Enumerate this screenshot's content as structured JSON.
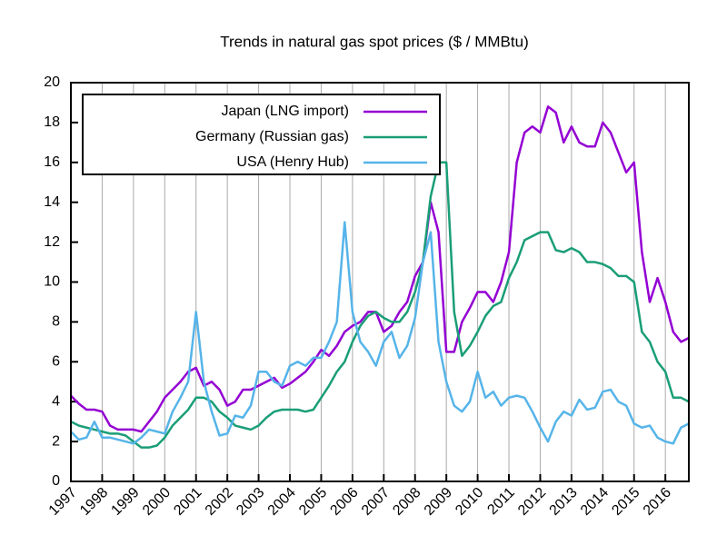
{
  "chart_data": {
    "type": "line",
    "title": "Trends in natural gas spot prices ($ / MMBtu)",
    "x": [
      1997,
      1997.25,
      1997.5,
      1997.75,
      1998,
      1998.25,
      1998.5,
      1998.75,
      1999,
      1999.25,
      1999.5,
      1999.75,
      2000,
      2000.25,
      2000.5,
      2000.75,
      2001,
      2001.25,
      2001.5,
      2001.75,
      2002,
      2002.25,
      2002.5,
      2002.75,
      2003,
      2003.25,
      2003.5,
      2003.75,
      2004,
      2004.25,
      2004.5,
      2004.75,
      2005,
      2005.25,
      2005.5,
      2005.75,
      2006,
      2006.25,
      2006.5,
      2006.75,
      2007,
      2007.25,
      2007.5,
      2007.75,
      2008,
      2008.25,
      2008.5,
      2008.75,
      2009,
      2009.25,
      2009.5,
      2009.75,
      2010,
      2010.25,
      2010.5,
      2010.75,
      2011,
      2011.25,
      2011.5,
      2011.75,
      2012,
      2012.25,
      2012.5,
      2012.75,
      2013,
      2013.25,
      2013.5,
      2013.75,
      2014,
      2014.25,
      2014.5,
      2014.75,
      2015,
      2015.25,
      2015.5,
      2015.75,
      2016,
      2016.25,
      2016.5,
      2016.75
    ],
    "series": [
      {
        "name": "Japan (LNG import)",
        "color": "#9400d3",
        "values": [
          4.3,
          3.9,
          3.6,
          3.6,
          3.5,
          2.8,
          2.6,
          2.6,
          2.6,
          2.5,
          3.0,
          3.5,
          4.2,
          4.6,
          5.0,
          5.5,
          5.7,
          4.8,
          5.0,
          4.6,
          3.8,
          4.0,
          4.6,
          4.6,
          4.8,
          5.0,
          5.2,
          4.7,
          4.9,
          5.2,
          5.5,
          6.0,
          6.6,
          6.3,
          6.8,
          7.5,
          7.8,
          8.0,
          8.5,
          8.5,
          7.5,
          7.8,
          8.5,
          9.0,
          10.3,
          11.0,
          14.0,
          12.5,
          6.5,
          6.5,
          8.0,
          8.7,
          9.5,
          9.5,
          9.0,
          10.0,
          11.5,
          16.0,
          17.5,
          17.8,
          17.5,
          18.8,
          18.5,
          17.0,
          17.8,
          17.0,
          16.8,
          16.8,
          18.0,
          17.5,
          16.5,
          15.5,
          16.0,
          11.5,
          9.0,
          10.2,
          9.0,
          7.5,
          7.0,
          7.2
        ]
      },
      {
        "name": "Germany (Russian gas)",
        "color": "#1a9e77",
        "values": [
          3.0,
          2.8,
          2.7,
          2.6,
          2.5,
          2.4,
          2.4,
          2.3,
          2.0,
          1.7,
          1.7,
          1.8,
          2.2,
          2.8,
          3.2,
          3.6,
          4.2,
          4.2,
          4.0,
          3.5,
          3.2,
          2.8,
          2.7,
          2.6,
          2.8,
          3.2,
          3.5,
          3.6,
          3.6,
          3.6,
          3.5,
          3.6,
          4.2,
          4.8,
          5.5,
          6.0,
          7.0,
          7.8,
          8.3,
          8.5,
          8.2,
          8.0,
          8.0,
          8.5,
          9.5,
          11.0,
          14.3,
          16.0,
          16.0,
          8.5,
          6.3,
          6.8,
          7.5,
          8.3,
          8.8,
          9.0,
          10.2,
          11.0,
          12.1,
          12.3,
          12.5,
          12.5,
          11.6,
          11.5,
          11.7,
          11.5,
          11.0,
          11.0,
          10.9,
          10.7,
          10.3,
          10.3,
          10.0,
          7.5,
          7.0,
          6.0,
          5.5,
          4.2,
          4.2,
          4.0
        ]
      },
      {
        "name": "USA (Henry Hub)",
        "color": "#56b4e9",
        "values": [
          2.5,
          2.1,
          2.2,
          3.0,
          2.2,
          2.2,
          2.1,
          2.0,
          1.9,
          2.2,
          2.6,
          2.5,
          2.4,
          3.5,
          4.2,
          5.0,
          8.5,
          5.0,
          3.5,
          2.3,
          2.4,
          3.3,
          3.2,
          3.8,
          5.5,
          5.5,
          5.0,
          4.8,
          5.8,
          6.0,
          5.8,
          6.2,
          6.2,
          7.0,
          8.0,
          13.0,
          8.5,
          7.0,
          6.5,
          5.8,
          7.0,
          7.5,
          6.2,
          6.8,
          8.2,
          11.0,
          12.5,
          7.0,
          5.0,
          3.8,
          3.5,
          4.0,
          5.5,
          4.2,
          4.5,
          3.8,
          4.2,
          4.3,
          4.2,
          3.5,
          2.7,
          2.0,
          3.0,
          3.5,
          3.3,
          4.1,
          3.6,
          3.7,
          4.5,
          4.6,
          4.0,
          3.8,
          2.9,
          2.7,
          2.8,
          2.2,
          2.0,
          1.9,
          2.7,
          2.9
        ]
      }
    ],
    "xlim": [
      1997,
      2016.75
    ],
    "xticks": [
      1997,
      1998,
      1999,
      2000,
      2001,
      2002,
      2003,
      2004,
      2005,
      2006,
      2007,
      2008,
      2009,
      2010,
      2011,
      2012,
      2013,
      2014,
      2015,
      2016
    ],
    "ylim": [
      0,
      20
    ],
    "yticks": [
      0,
      2,
      4,
      6,
      8,
      10,
      12,
      14,
      16,
      18,
      20
    ],
    "grid": true,
    "legend": "upper-left"
  }
}
